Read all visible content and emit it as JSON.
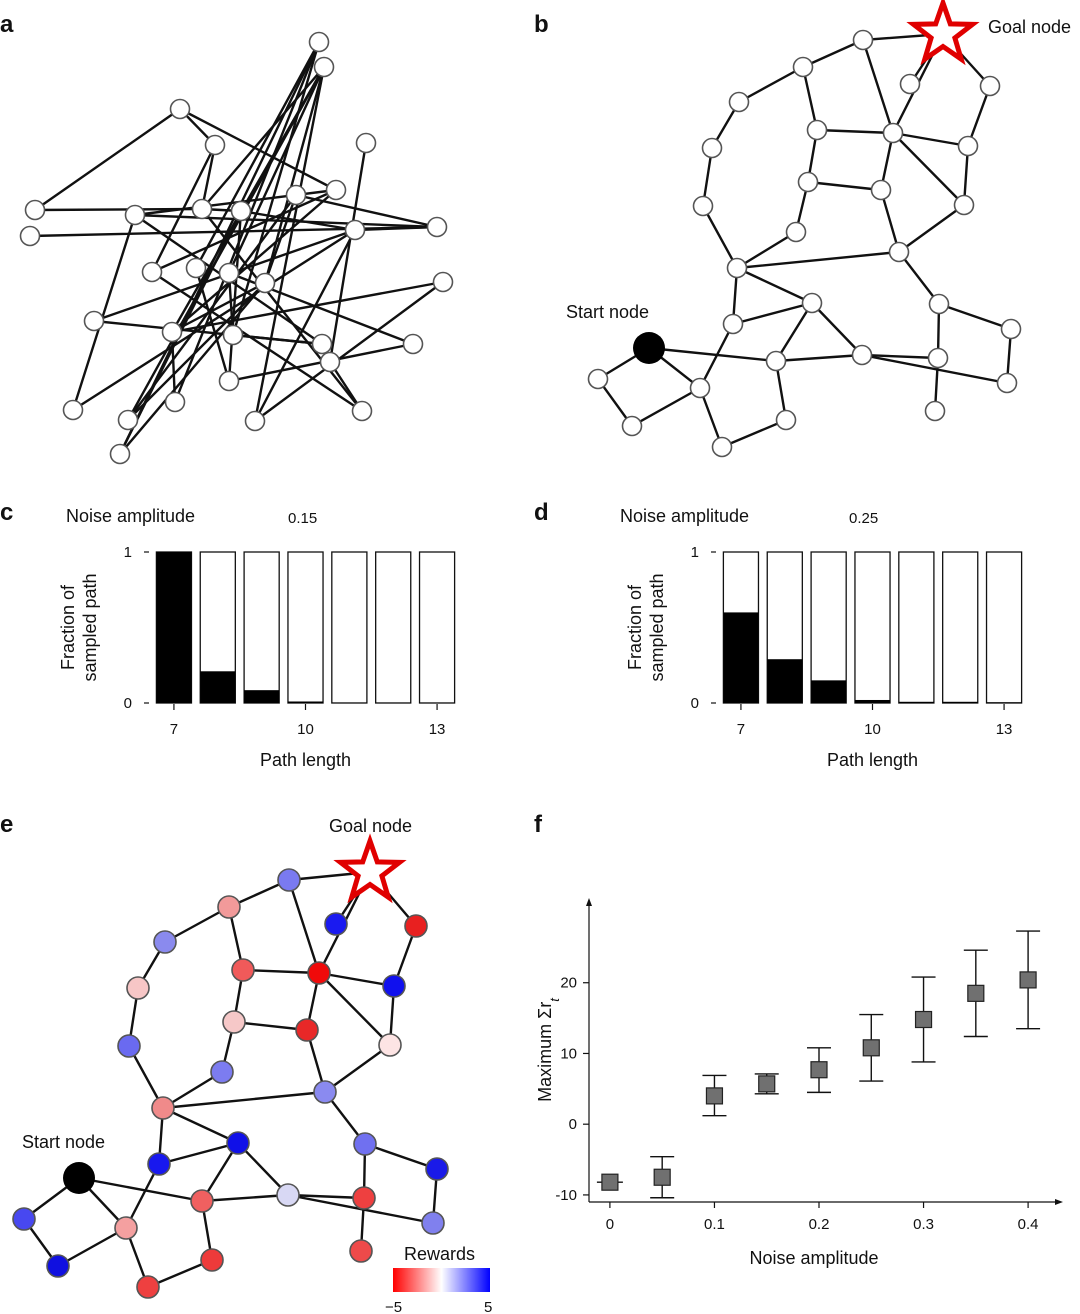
{
  "panels": {
    "a": {
      "label": "a"
    },
    "b": {
      "label": "b",
      "start_label": "Start node",
      "goal_label": "Goal node"
    },
    "c": {
      "label": "c",
      "noise_title": "Noise amplitude",
      "noise_value": "0.15"
    },
    "d": {
      "label": "d",
      "noise_title": "Noise amplitude",
      "noise_value": "0.25"
    },
    "e": {
      "label": "e",
      "start_label": "Start node",
      "goal_label": "Goal node",
      "legend_title": "Rewards",
      "legend_min": "−5",
      "legend_max": "5",
      "colors": {
        "neg": "#ff0000",
        "mid": "#ffffff",
        "pos": "#0000ff"
      }
    },
    "f": {
      "label": "f"
    }
  },
  "chart_data": [
    {
      "panel": "c",
      "type": "bar",
      "title": "Noise amplitude 0.15",
      "xlabel": "Path length",
      "ylabel": "Fraction of sampled path",
      "categories": [
        7,
        8,
        9,
        10,
        11,
        12,
        13
      ],
      "x_tick_labels": [
        "7",
        "10",
        "13"
      ],
      "y_tick_labels": [
        "0",
        "1"
      ],
      "values": [
        1.0,
        0.21,
        0.085,
        0.01,
        0.003,
        0.003,
        0.003
      ],
      "ylim": [
        0,
        1
      ]
    },
    {
      "panel": "d",
      "type": "bar",
      "title": "Noise amplitude 0.25",
      "xlabel": "Path length",
      "ylabel": "Fraction of sampled path",
      "categories": [
        7,
        8,
        9,
        10,
        11,
        12,
        13
      ],
      "x_tick_labels": [
        "7",
        "10",
        "13"
      ],
      "y_tick_labels": [
        "0",
        "1"
      ],
      "values": [
        0.6,
        0.29,
        0.15,
        0.02,
        0.008,
        0.008,
        0.005
      ],
      "ylim": [
        0,
        1
      ]
    },
    {
      "panel": "f",
      "type": "scatter",
      "xlabel": "Noise amplitude",
      "ylabel": "Maximum Σr",
      "ylabel_sub": "t",
      "x": [
        0,
        0.05,
        0.1,
        0.15,
        0.2,
        0.25,
        0.3,
        0.35,
        0.4
      ],
      "y": [
        -8.2,
        -7.5,
        4.0,
        5.7,
        7.7,
        10.8,
        14.8,
        18.5,
        20.4
      ],
      "err_low": [
        -8.2,
        -10.4,
        1.2,
        4.3,
        4.5,
        6.1,
        8.8,
        12.4,
        13.5
      ],
      "err_high": [
        -8.2,
        -4.6,
        6.9,
        7.1,
        10.8,
        15.5,
        20.8,
        24.6,
        27.3
      ],
      "x_ticks": [
        0,
        0.1,
        0.2,
        0.3,
        0.4
      ],
      "x_tick_labels": [
        "0",
        "0.1",
        "0.2",
        "0.3",
        "0.4"
      ],
      "y_ticks": [
        -10,
        0,
        10,
        20
      ],
      "y_tick_labels": [
        "-10",
        "0",
        "10",
        "20"
      ],
      "xlim": [
        -0.02,
        0.42
      ],
      "ylim": [
        -11,
        30
      ],
      "marker_color": "#707070"
    }
  ]
}
